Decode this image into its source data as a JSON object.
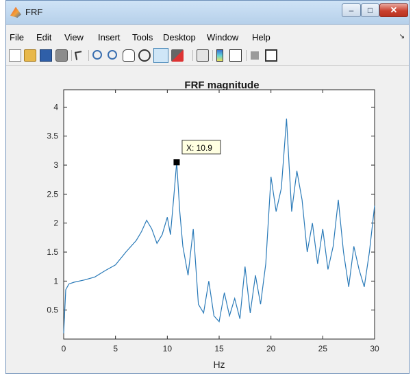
{
  "window": {
    "title": "FRF",
    "buttons": {
      "minimize": "–",
      "maximize": "□",
      "close": "✕"
    }
  },
  "menu": {
    "items": [
      "File",
      "Edit",
      "View",
      "Insert",
      "Tools",
      "Desktop",
      "Window",
      "Help"
    ],
    "overflow": "↘"
  },
  "toolbar": {
    "icons": [
      "new-figure-icon",
      "open-file-icon",
      "save-icon",
      "print-icon",
      "select-arrow-icon",
      "zoom-in-icon",
      "zoom-out-icon",
      "pan-icon",
      "rotate-3d-icon",
      "data-cursor-icon",
      "brush-icon",
      "link-plot-icon",
      "colorbar-icon",
      "legend-icon",
      "hide-plot-tools-icon",
      "show-plot-tools-icon"
    ]
  },
  "chart_data": {
    "type": "line",
    "title": "FRF magnitude",
    "xlabel": "Hz",
    "ylabel": "",
    "xlim": [
      0,
      30
    ],
    "ylim": [
      0,
      4.3
    ],
    "xticks": [
      0,
      5,
      10,
      15,
      20,
      25,
      30
    ],
    "yticks": [
      0.5,
      1,
      1.5,
      2,
      2.5,
      3,
      3.5,
      4
    ],
    "grid": false,
    "line_color": "#2a7ab8",
    "series": [
      {
        "x": [
          0,
          0.2,
          0.5,
          1,
          2,
          3,
          4,
          5,
          6,
          7,
          7.5,
          8,
          8.5,
          9,
          9.5,
          10,
          10.3,
          10.6,
          10.9,
          11.2,
          11.5,
          12,
          12.5,
          13,
          13.5,
          14,
          14.5,
          15,
          15.5,
          16,
          16.5,
          17,
          17.5,
          18,
          18.5,
          19,
          19.5,
          20,
          20.5,
          21,
          21.5,
          22,
          22.5,
          23,
          23.5,
          24,
          24.5,
          25,
          25.5,
          26,
          26.5,
          27,
          27.5,
          28,
          28.5,
          29,
          29.5,
          30
        ],
        "y": [
          0.1,
          0.85,
          0.95,
          0.98,
          1.02,
          1.07,
          1.18,
          1.28,
          1.5,
          1.7,
          1.85,
          2.05,
          1.9,
          1.65,
          1.8,
          2.1,
          1.8,
          2.4,
          3.05,
          2.2,
          1.6,
          1.1,
          1.9,
          0.6,
          0.45,
          1.0,
          0.4,
          0.3,
          0.8,
          0.4,
          0.7,
          0.35,
          1.25,
          0.45,
          1.1,
          0.6,
          1.3,
          2.8,
          2.2,
          2.6,
          3.8,
          2.2,
          2.9,
          2.4,
          1.5,
          2.0,
          1.3,
          1.9,
          1.2,
          1.6,
          2.4,
          1.5,
          0.9,
          1.6,
          1.2,
          0.9,
          1.5,
          2.3
        ]
      }
    ],
    "datatip": {
      "label": "X: 10.9",
      "x": 10.9,
      "y": 3.05
    }
  }
}
